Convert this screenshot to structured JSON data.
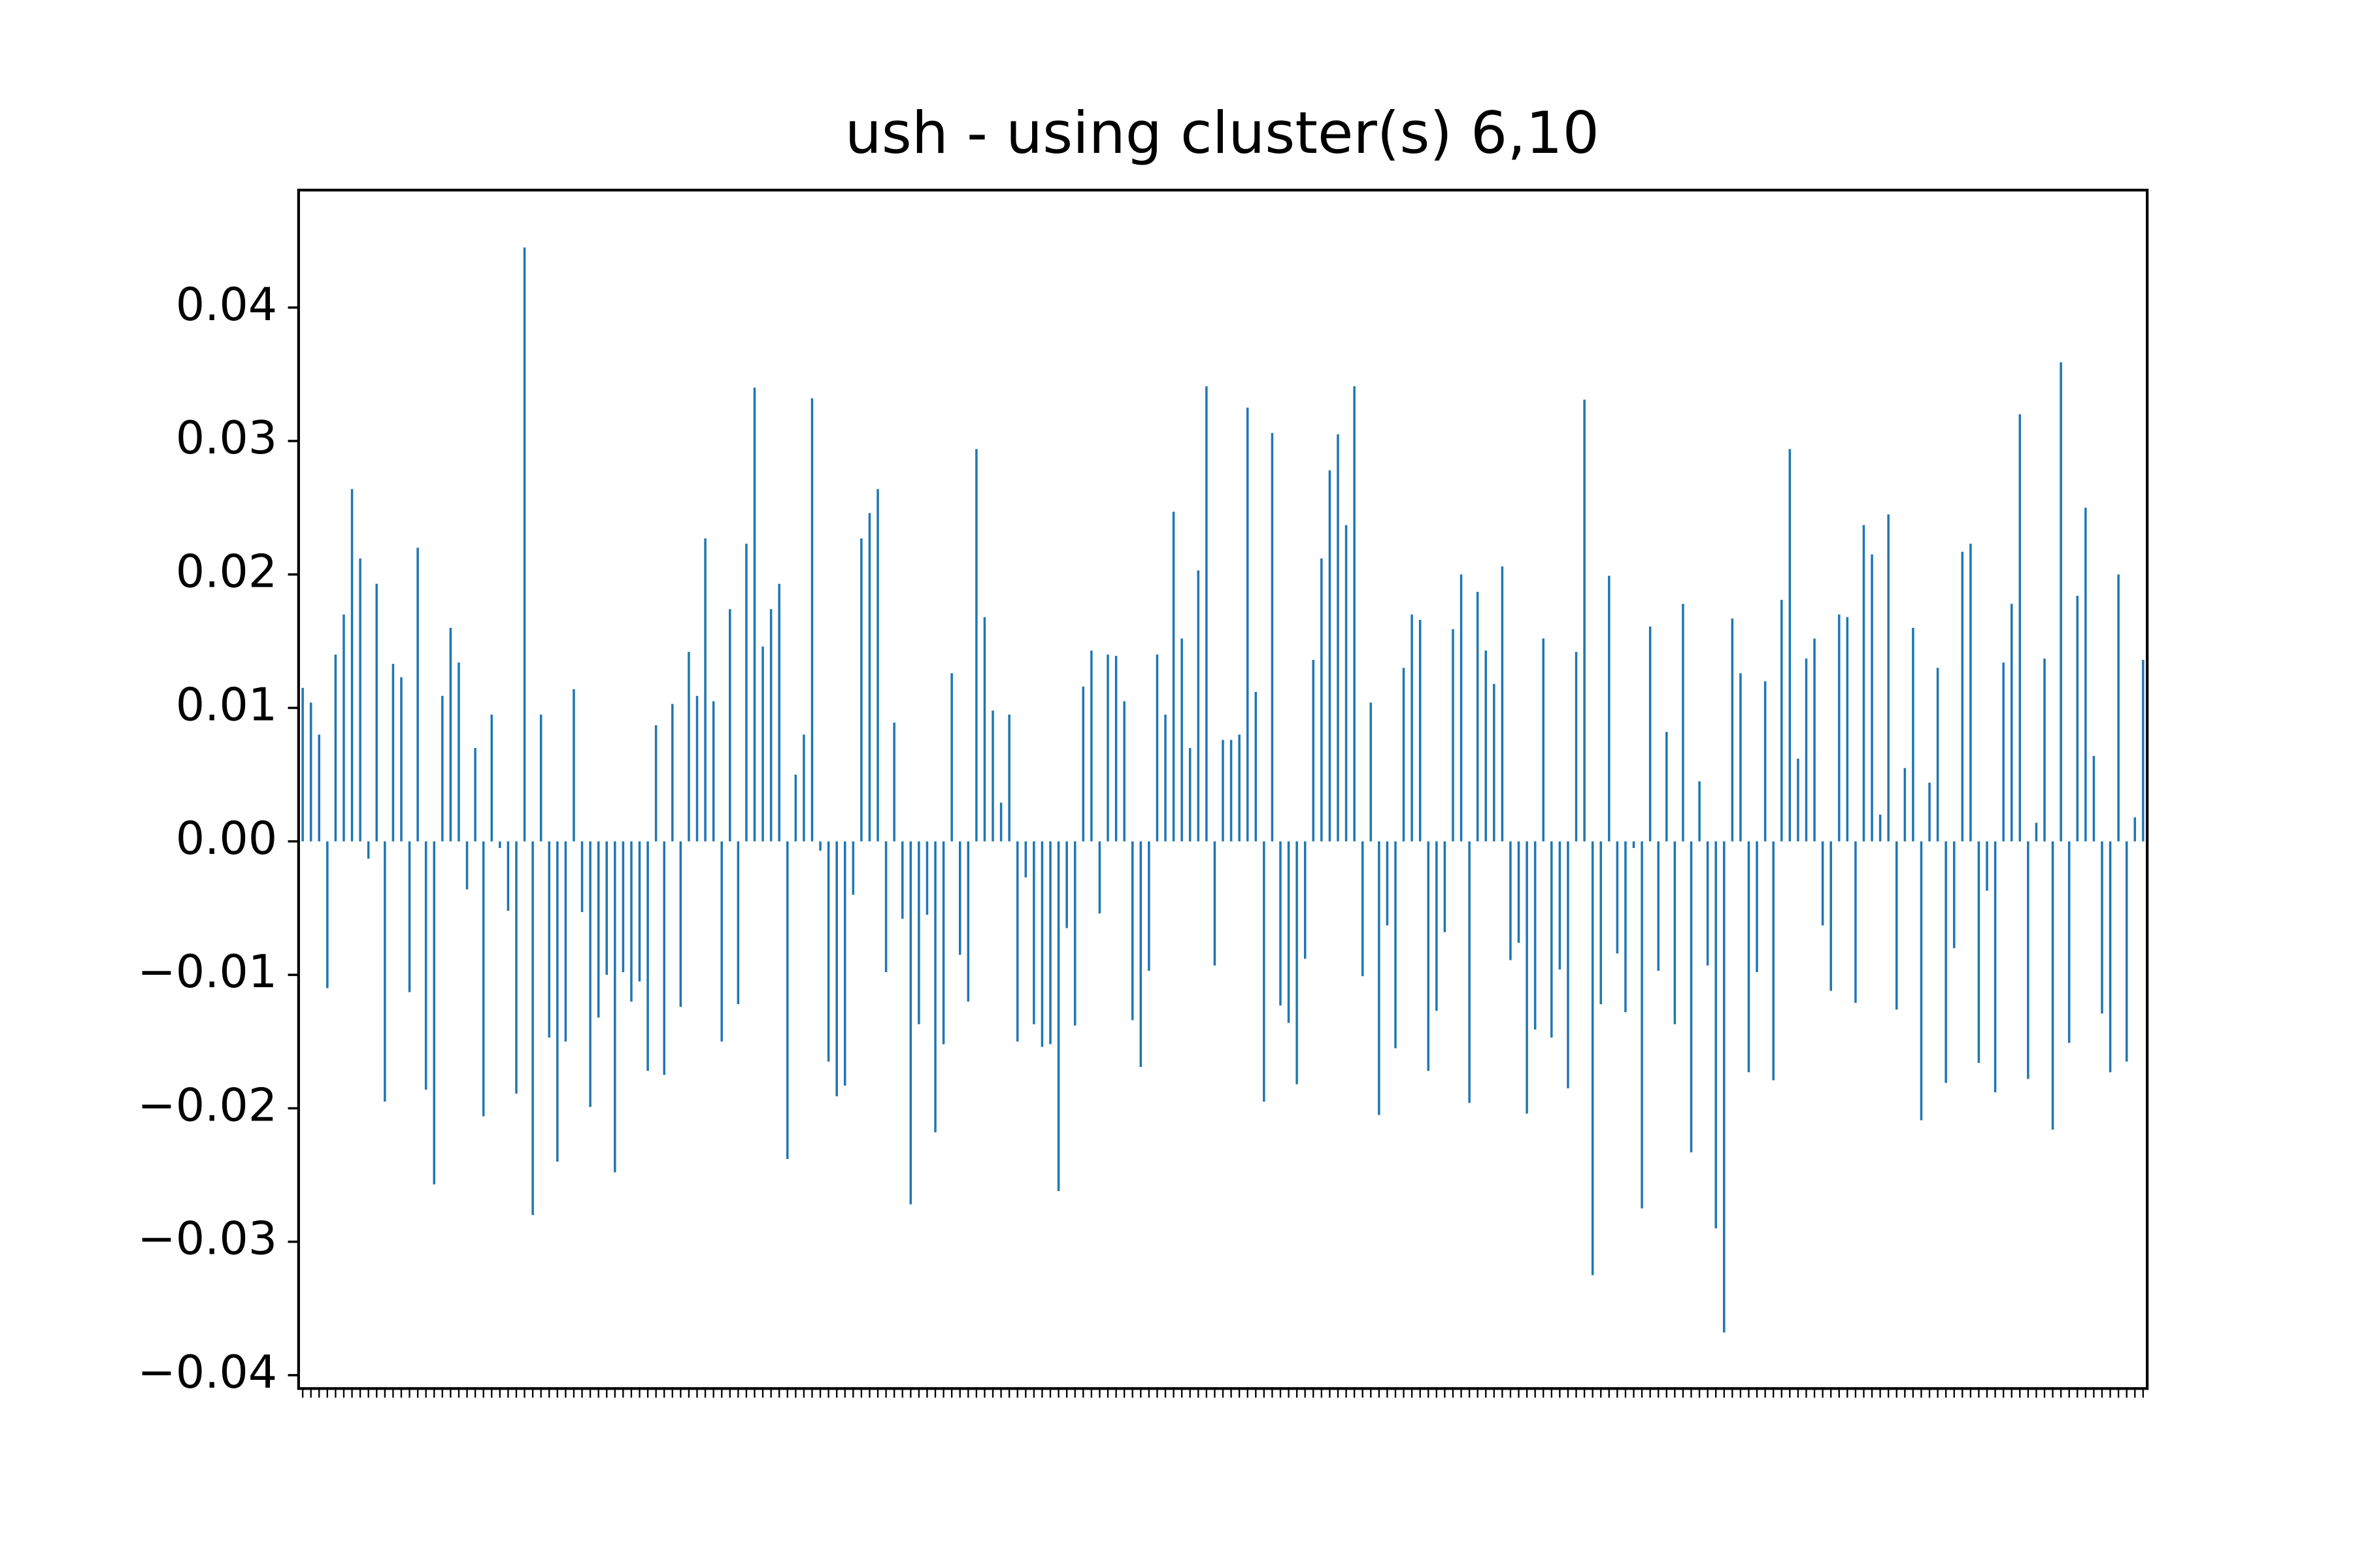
{
  "chart_data": {
    "type": "bar",
    "title": "ush - using cluster(s) 6,10",
    "color": "#1f77b4",
    "ylim": [
      -0.041,
      0.0488
    ],
    "yticks": [
      {
        "value": -0.04,
        "label": "−0.04"
      },
      {
        "value": -0.03,
        "label": "−0.03"
      },
      {
        "value": -0.02,
        "label": "−0.02"
      },
      {
        "value": -0.01,
        "label": "−0.01"
      },
      {
        "value": 0,
        "label": "0.00"
      },
      0.01,
      0.02,
      0.03,
      0.04
    ],
    "grid": false,
    "categories": [
      null,
      null,
      null,
      null,
      null,
      null,
      null,
      null,
      null,
      null,
      null,
      null,
      null,
      null,
      null,
      null,
      null,
      null,
      null,
      null,
      null,
      null,
      null,
      null,
      null,
      null,
      null,
      null,
      null,
      null,
      null,
      null,
      null,
      null,
      null,
      null,
      null,
      null,
      null,
      null,
      null,
      null,
      null,
      null,
      null,
      null,
      null,
      null,
      null,
      null,
      null,
      null,
      null,
      null,
      null,
      null,
      null,
      null,
      null,
      null,
      null,
      null,
      null,
      null,
      null,
      null,
      null,
      null,
      null,
      null,
      null,
      null,
      null,
      null,
      null,
      null,
      null,
      null,
      null,
      null,
      null,
      null,
      null,
      null,
      null,
      null,
      null,
      null,
      null,
      null,
      null,
      null,
      null,
      null,
      null,
      null,
      null,
      null,
      null,
      null,
      null,
      null,
      null,
      null,
      null,
      null,
      null,
      null,
      null,
      null,
      null,
      null,
      null,
      null,
      null,
      null,
      null,
      null,
      null,
      null,
      null,
      null,
      null,
      null,
      null,
      null,
      null,
      null,
      null,
      null,
      null,
      null,
      null,
      null,
      null,
      null,
      null,
      null,
      null,
      null,
      null,
      null,
      null,
      null,
      null,
      null,
      null,
      null,
      null,
      null,
      null,
      null,
      null,
      null,
      null,
      null,
      null,
      null,
      null,
      null,
      null,
      null,
      null,
      null,
      null,
      null,
      null,
      null,
      null,
      null,
      null,
      null,
      null,
      null,
      null,
      null,
      null,
      null,
      null,
      null,
      null,
      null,
      null,
      null,
      null,
      null,
      null,
      null,
      null,
      null,
      null,
      null,
      null,
      null,
      null,
      null,
      null,
      null,
      null,
      null,
      null,
      null,
      null,
      null,
      null,
      null,
      null,
      null,
      null,
      null,
      null,
      null,
      null,
      null,
      null,
      null,
      null,
      null,
      null,
      null,
      null,
      null,
      null,
      null,
      null
    ],
    "values": [
      0.0115,
      0.0104,
      0.008,
      -0.011,
      0.014,
      0.017,
      0.0264,
      0.0212,
      -0.0013,
      0.0193,
      -0.0195,
      0.0133,
      0.0123,
      -0.0113,
      0.022,
      -0.0186,
      -0.0257,
      0.0109,
      0.016,
      0.0134,
      -0.0036,
      0.007,
      -0.0206,
      0.0095,
      -0.0005,
      -0.0052,
      -0.0189,
      0.0445,
      -0.028,
      0.0095,
      -0.0147,
      -0.024,
      -0.015,
      0.0114,
      -0.0053,
      -0.0199,
      -0.0132,
      -0.01,
      -0.0248,
      -0.0098,
      -0.012,
      -0.0105,
      -0.0172,
      0.0087,
      -0.0175,
      0.0103,
      -0.0124,
      0.0142,
      0.0109,
      0.0227,
      0.0105,
      -0.015,
      0.0174,
      -0.0122,
      0.0223,
      0.034,
      0.0146,
      0.0174,
      0.0193,
      -0.0238,
      0.005,
      0.008,
      0.0332,
      -0.0007,
      -0.0165,
      -0.0191,
      -0.0183,
      -0.004,
      0.0227,
      0.0246,
      0.0264,
      -0.0098,
      0.0089,
      -0.0058,
      -0.0272,
      -0.0137,
      -0.0055,
      -0.0218,
      -0.0152,
      0.0126,
      -0.0085,
      -0.012,
      0.0294,
      0.0168,
      0.0098,
      0.0029,
      0.0095,
      -0.015,
      -0.0027,
      -0.0137,
      -0.0154,
      -0.0152,
      -0.0262,
      -0.0065,
      -0.0138,
      0.0116,
      0.0143,
      -0.0054,
      0.014,
      0.0139,
      0.0105,
      -0.0134,
      -0.0169,
      -0.0097,
      0.014,
      0.0095,
      0.0247,
      0.0152,
      0.007,
      0.0203,
      0.0341,
      -0.0093,
      0.0076,
      0.0076,
      0.008,
      0.0325,
      0.0112,
      -0.0195,
      0.0306,
      -0.0123,
      -0.0136,
      -0.0182,
      -0.0088,
      0.0136,
      0.0212,
      0.0278,
      0.0305,
      0.0237,
      0.0341,
      -0.0101,
      0.0104,
      -0.0205,
      -0.0063,
      -0.0155,
      0.013,
      0.017,
      0.0166,
      -0.0172,
      -0.0127,
      -0.0068,
      0.0159,
      0.02,
      -0.0196,
      0.0187,
      0.0143,
      0.0118,
      0.0206,
      -0.0089,
      -0.0076,
      -0.0204,
      -0.0141,
      0.0152,
      -0.0147,
      -0.0096,
      -0.0185,
      0.0142,
      0.0331,
      -0.0325,
      -0.0122,
      0.0199,
      -0.0084,
      -0.0128,
      -0.0005,
      -0.0275,
      0.0161,
      -0.0097,
      0.0082,
      -0.0137,
      0.0178,
      -0.0233,
      0.0045,
      -0.0093,
      -0.029,
      -0.0368,
      0.0167,
      0.0126,
      -0.0173,
      -0.0098,
      0.012,
      -0.0179,
      0.0181,
      0.0294,
      0.0062,
      0.0137,
      0.0152,
      -0.0063,
      -0.0112,
      0.017,
      0.0168,
      -0.0121,
      0.0237,
      0.0215,
      0.002,
      0.0245,
      -0.0126,
      0.0055,
      0.016,
      -0.0209,
      0.0044,
      0.013,
      -0.0181,
      -0.008,
      0.0217,
      0.0223,
      -0.0166,
      -0.0037,
      -0.0188,
      0.0134,
      0.0178,
      0.032,
      -0.0178,
      0.0014,
      0.0137,
      -0.0216,
      0.0359,
      -0.0151,
      0.0184,
      0.025,
      0.0064,
      -0.0129,
      -0.0173,
      0.02,
      -0.0165,
      0.0018,
      0.0136
    ]
  }
}
